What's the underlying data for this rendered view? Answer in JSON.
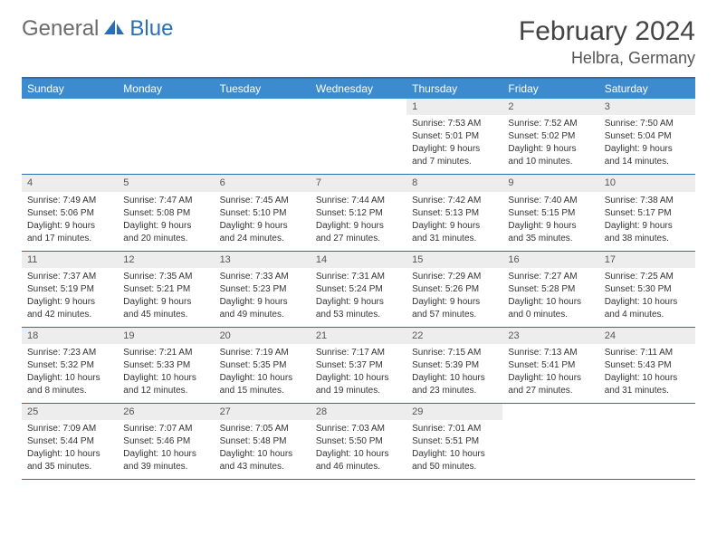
{
  "logo": {
    "general": "General",
    "blue": "Blue"
  },
  "title": "February 2024",
  "location": "Helbra, Germany",
  "colors": {
    "header_bg": "#3b8bce",
    "border": "#2a6fb5",
    "daynum_bg": "#ededed",
    "text": "#333333",
    "logo_gray": "#6b6b6b",
    "logo_blue": "#2a6fb5"
  },
  "day_headers": [
    "Sunday",
    "Monday",
    "Tuesday",
    "Wednesday",
    "Thursday",
    "Friday",
    "Saturday"
  ],
  "weeks": [
    [
      {
        "empty": true
      },
      {
        "empty": true
      },
      {
        "empty": true
      },
      {
        "empty": true
      },
      {
        "num": "1",
        "sunrise": "Sunrise: 7:53 AM",
        "sunset": "Sunset: 5:01 PM",
        "daylight1": "Daylight: 9 hours",
        "daylight2": "and 7 minutes."
      },
      {
        "num": "2",
        "sunrise": "Sunrise: 7:52 AM",
        "sunset": "Sunset: 5:02 PM",
        "daylight1": "Daylight: 9 hours",
        "daylight2": "and 10 minutes."
      },
      {
        "num": "3",
        "sunrise": "Sunrise: 7:50 AM",
        "sunset": "Sunset: 5:04 PM",
        "daylight1": "Daylight: 9 hours",
        "daylight2": "and 14 minutes."
      }
    ],
    [
      {
        "num": "4",
        "sunrise": "Sunrise: 7:49 AM",
        "sunset": "Sunset: 5:06 PM",
        "daylight1": "Daylight: 9 hours",
        "daylight2": "and 17 minutes."
      },
      {
        "num": "5",
        "sunrise": "Sunrise: 7:47 AM",
        "sunset": "Sunset: 5:08 PM",
        "daylight1": "Daylight: 9 hours",
        "daylight2": "and 20 minutes."
      },
      {
        "num": "6",
        "sunrise": "Sunrise: 7:45 AM",
        "sunset": "Sunset: 5:10 PM",
        "daylight1": "Daylight: 9 hours",
        "daylight2": "and 24 minutes."
      },
      {
        "num": "7",
        "sunrise": "Sunrise: 7:44 AM",
        "sunset": "Sunset: 5:12 PM",
        "daylight1": "Daylight: 9 hours",
        "daylight2": "and 27 minutes."
      },
      {
        "num": "8",
        "sunrise": "Sunrise: 7:42 AM",
        "sunset": "Sunset: 5:13 PM",
        "daylight1": "Daylight: 9 hours",
        "daylight2": "and 31 minutes."
      },
      {
        "num": "9",
        "sunrise": "Sunrise: 7:40 AM",
        "sunset": "Sunset: 5:15 PM",
        "daylight1": "Daylight: 9 hours",
        "daylight2": "and 35 minutes."
      },
      {
        "num": "10",
        "sunrise": "Sunrise: 7:38 AM",
        "sunset": "Sunset: 5:17 PM",
        "daylight1": "Daylight: 9 hours",
        "daylight2": "and 38 minutes."
      }
    ],
    [
      {
        "num": "11",
        "sunrise": "Sunrise: 7:37 AM",
        "sunset": "Sunset: 5:19 PM",
        "daylight1": "Daylight: 9 hours",
        "daylight2": "and 42 minutes."
      },
      {
        "num": "12",
        "sunrise": "Sunrise: 7:35 AM",
        "sunset": "Sunset: 5:21 PM",
        "daylight1": "Daylight: 9 hours",
        "daylight2": "and 45 minutes."
      },
      {
        "num": "13",
        "sunrise": "Sunrise: 7:33 AM",
        "sunset": "Sunset: 5:23 PM",
        "daylight1": "Daylight: 9 hours",
        "daylight2": "and 49 minutes."
      },
      {
        "num": "14",
        "sunrise": "Sunrise: 7:31 AM",
        "sunset": "Sunset: 5:24 PM",
        "daylight1": "Daylight: 9 hours",
        "daylight2": "and 53 minutes."
      },
      {
        "num": "15",
        "sunrise": "Sunrise: 7:29 AM",
        "sunset": "Sunset: 5:26 PM",
        "daylight1": "Daylight: 9 hours",
        "daylight2": "and 57 minutes."
      },
      {
        "num": "16",
        "sunrise": "Sunrise: 7:27 AM",
        "sunset": "Sunset: 5:28 PM",
        "daylight1": "Daylight: 10 hours",
        "daylight2": "and 0 minutes."
      },
      {
        "num": "17",
        "sunrise": "Sunrise: 7:25 AM",
        "sunset": "Sunset: 5:30 PM",
        "daylight1": "Daylight: 10 hours",
        "daylight2": "and 4 minutes."
      }
    ],
    [
      {
        "num": "18",
        "sunrise": "Sunrise: 7:23 AM",
        "sunset": "Sunset: 5:32 PM",
        "daylight1": "Daylight: 10 hours",
        "daylight2": "and 8 minutes."
      },
      {
        "num": "19",
        "sunrise": "Sunrise: 7:21 AM",
        "sunset": "Sunset: 5:33 PM",
        "daylight1": "Daylight: 10 hours",
        "daylight2": "and 12 minutes."
      },
      {
        "num": "20",
        "sunrise": "Sunrise: 7:19 AM",
        "sunset": "Sunset: 5:35 PM",
        "daylight1": "Daylight: 10 hours",
        "daylight2": "and 15 minutes."
      },
      {
        "num": "21",
        "sunrise": "Sunrise: 7:17 AM",
        "sunset": "Sunset: 5:37 PM",
        "daylight1": "Daylight: 10 hours",
        "daylight2": "and 19 minutes."
      },
      {
        "num": "22",
        "sunrise": "Sunrise: 7:15 AM",
        "sunset": "Sunset: 5:39 PM",
        "daylight1": "Daylight: 10 hours",
        "daylight2": "and 23 minutes."
      },
      {
        "num": "23",
        "sunrise": "Sunrise: 7:13 AM",
        "sunset": "Sunset: 5:41 PM",
        "daylight1": "Daylight: 10 hours",
        "daylight2": "and 27 minutes."
      },
      {
        "num": "24",
        "sunrise": "Sunrise: 7:11 AM",
        "sunset": "Sunset: 5:43 PM",
        "daylight1": "Daylight: 10 hours",
        "daylight2": "and 31 minutes."
      }
    ],
    [
      {
        "num": "25",
        "sunrise": "Sunrise: 7:09 AM",
        "sunset": "Sunset: 5:44 PM",
        "daylight1": "Daylight: 10 hours",
        "daylight2": "and 35 minutes."
      },
      {
        "num": "26",
        "sunrise": "Sunrise: 7:07 AM",
        "sunset": "Sunset: 5:46 PM",
        "daylight1": "Daylight: 10 hours",
        "daylight2": "and 39 minutes."
      },
      {
        "num": "27",
        "sunrise": "Sunrise: 7:05 AM",
        "sunset": "Sunset: 5:48 PM",
        "daylight1": "Daylight: 10 hours",
        "daylight2": "and 43 minutes."
      },
      {
        "num": "28",
        "sunrise": "Sunrise: 7:03 AM",
        "sunset": "Sunset: 5:50 PM",
        "daylight1": "Daylight: 10 hours",
        "daylight2": "and 46 minutes."
      },
      {
        "num": "29",
        "sunrise": "Sunrise: 7:01 AM",
        "sunset": "Sunset: 5:51 PM",
        "daylight1": "Daylight: 10 hours",
        "daylight2": "and 50 minutes."
      },
      {
        "empty": true
      },
      {
        "empty": true
      }
    ]
  ]
}
